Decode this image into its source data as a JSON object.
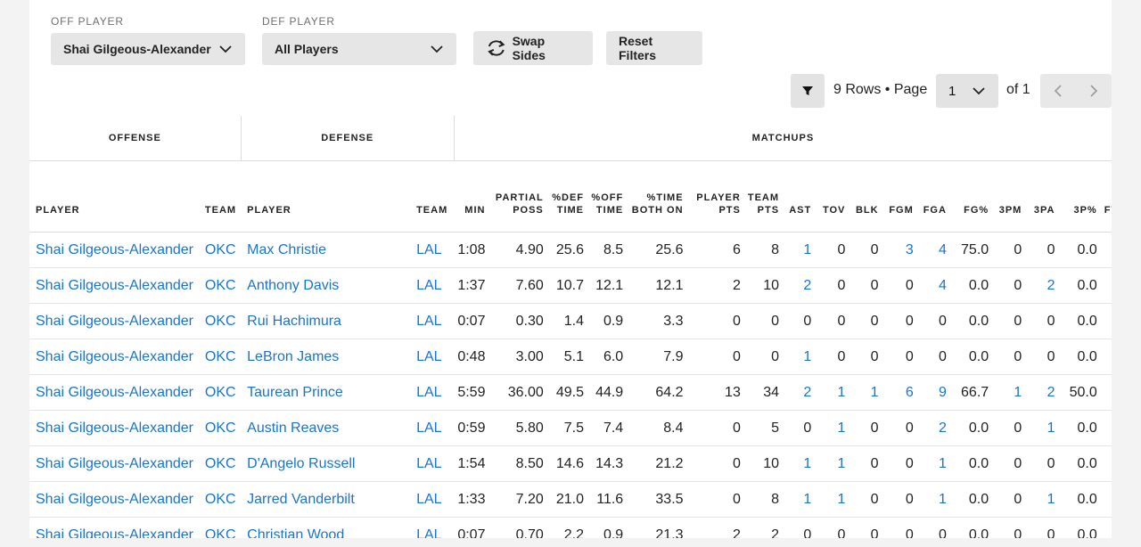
{
  "filters": {
    "off_label": "OFF PLAYER",
    "off_value": "Shai Gilgeous-Alexander",
    "def_label": "DEF PLAYER",
    "def_value": "All Players",
    "swap_label": "Swap Sides",
    "reset_label": "Reset Filters"
  },
  "pagination": {
    "rows_text": "9 Rows • Page",
    "page": "1",
    "of_text": "of 1"
  },
  "groups": [
    "OFFENSE",
    "DEFENSE",
    "MATCHUPS"
  ],
  "columns": [
    "PLAYER",
    "TEAM",
    "PLAYER",
    "TEAM",
    "MIN",
    "PARTIAL POSS",
    "%DEF TIME",
    "%OFF TIME",
    "%TIME BOTH ON",
    "PLAYER PTS",
    "TEAM PTS",
    "AST",
    "TOV",
    "BLK",
    "FGM",
    "FGA",
    "FG%",
    "3PM",
    "3PA",
    "3P%",
    "FT"
  ],
  "rows": [
    [
      "Shai Gilgeous-Alexander",
      "OKC",
      "Max Christie",
      "LAL",
      "1:08",
      "4.90",
      "25.6",
      "8.5",
      "25.6",
      "6",
      "8",
      "1",
      "0",
      "0",
      "3",
      "4",
      "75.0",
      "0",
      "0",
      "0.0",
      ""
    ],
    [
      "Shai Gilgeous-Alexander",
      "OKC",
      "Anthony Davis",
      "LAL",
      "1:37",
      "7.60",
      "10.7",
      "12.1",
      "12.1",
      "2",
      "10",
      "2",
      "0",
      "0",
      "0",
      "4",
      "0.0",
      "0",
      "2",
      "0.0",
      ""
    ],
    [
      "Shai Gilgeous-Alexander",
      "OKC",
      "Rui Hachimura",
      "LAL",
      "0:07",
      "0.30",
      "1.4",
      "0.9",
      "3.3",
      "0",
      "0",
      "0",
      "0",
      "0",
      "0",
      "0",
      "0.0",
      "0",
      "0",
      "0.0",
      ""
    ],
    [
      "Shai Gilgeous-Alexander",
      "OKC",
      "LeBron James",
      "LAL",
      "0:48",
      "3.00",
      "5.1",
      "6.0",
      "7.9",
      "0",
      "0",
      "1",
      "0",
      "0",
      "0",
      "0",
      "0.0",
      "0",
      "0",
      "0.0",
      ""
    ],
    [
      "Shai Gilgeous-Alexander",
      "OKC",
      "Taurean Prince",
      "LAL",
      "5:59",
      "36.00",
      "49.5",
      "44.9",
      "64.2",
      "13",
      "34",
      "2",
      "1",
      "1",
      "6",
      "9",
      "66.7",
      "1",
      "2",
      "50.0",
      ""
    ],
    [
      "Shai Gilgeous-Alexander",
      "OKC",
      "Austin Reaves",
      "LAL",
      "0:59",
      "5.80",
      "7.5",
      "7.4",
      "8.4",
      "0",
      "5",
      "0",
      "1",
      "0",
      "0",
      "2",
      "0.0",
      "0",
      "1",
      "0.0",
      ""
    ],
    [
      "Shai Gilgeous-Alexander",
      "OKC",
      "D'Angelo Russell",
      "LAL",
      "1:54",
      "8.50",
      "14.6",
      "14.3",
      "21.2",
      "0",
      "10",
      "1",
      "1",
      "0",
      "0",
      "1",
      "0.0",
      "0",
      "0",
      "0.0",
      ""
    ],
    [
      "Shai Gilgeous-Alexander",
      "OKC",
      "Jarred Vanderbilt",
      "LAL",
      "1:33",
      "7.20",
      "21.0",
      "11.6",
      "33.5",
      "0",
      "8",
      "1",
      "1",
      "0",
      "0",
      "1",
      "0.0",
      "0",
      "1",
      "0.0",
      ""
    ],
    [
      "Shai Gilgeous-Alexander",
      "OKC",
      "Christian Wood",
      "LAL",
      "0:07",
      "0.70",
      "2.2",
      "0.9",
      "21.3",
      "2",
      "2",
      "0",
      "0",
      "0",
      "0",
      "0",
      "0.0",
      "0",
      "0",
      "0.0",
      ""
    ]
  ],
  "colors": {
    "link": "#1a73d1",
    "button_bg": "#e6e6e6",
    "page_bg": "#f3f3f3"
  }
}
